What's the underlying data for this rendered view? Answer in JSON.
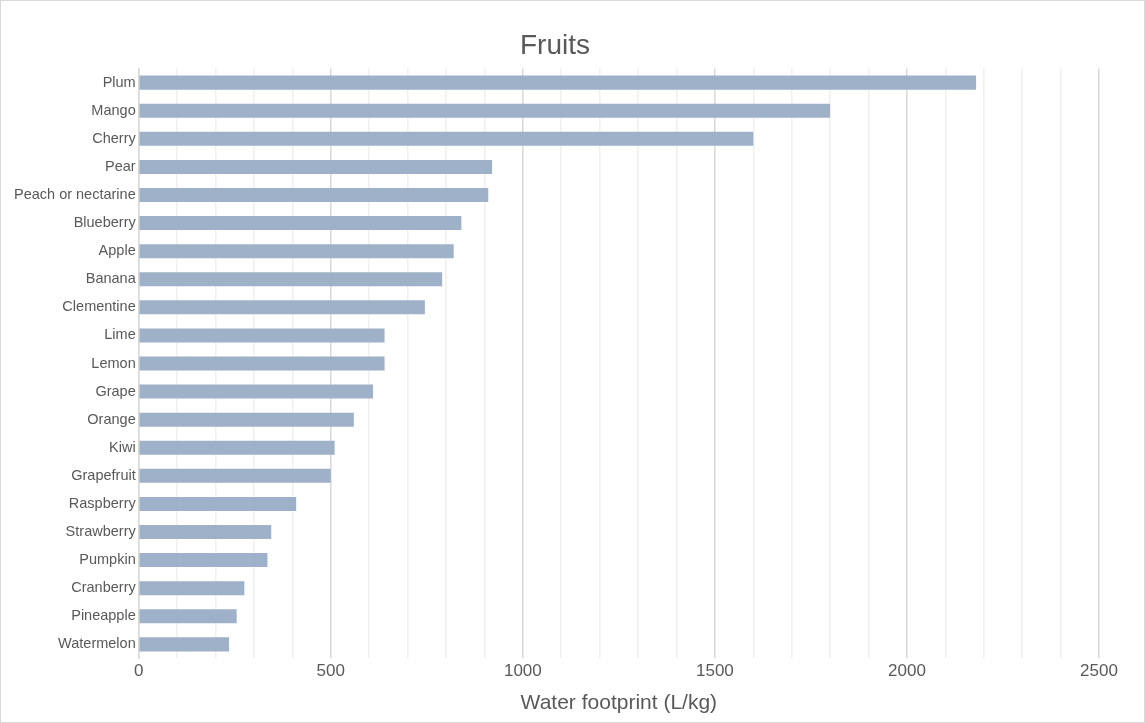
{
  "chart_data": {
    "type": "bar",
    "orientation": "horizontal",
    "title": "Fruits",
    "xlabel": "Water footprint (L/kg)",
    "categories": [
      "Plum",
      "Mango",
      "Cherry",
      "Pear",
      "Peach or nectarine",
      "Blueberry",
      "Apple",
      "Banana",
      "Clementine",
      "Lime",
      "Lemon",
      "Grape",
      "Orange",
      "Kiwi",
      "Grapefruit",
      "Raspberry",
      "Strawberry",
      "Pumpkin",
      "Cranberry",
      "Pineapple",
      "Watermelon"
    ],
    "values": [
      2180,
      1800,
      1600,
      920,
      910,
      840,
      820,
      790,
      745,
      640,
      640,
      610,
      560,
      510,
      500,
      410,
      345,
      335,
      275,
      255,
      235
    ],
    "color": "#9eb1c8",
    "xlim": [
      0,
      2500
    ],
    "xticks": [
      0,
      {
        "value": 100,
        "label": null
      },
      {
        "value": 200,
        "label": null
      },
      {
        "value": 300,
        "label": null
      },
      {
        "value": 400,
        "label": null
      },
      500,
      {
        "value": 600,
        "label": null
      },
      {
        "value": 700,
        "label": null
      },
      {
        "value": 800,
        "label": null
      },
      {
        "value": 900,
        "label": null
      },
      1000,
      {
        "value": 1100,
        "label": null
      },
      {
        "value": 1200,
        "label": null
      },
      {
        "value": 1300,
        "label": null
      },
      {
        "value": 1400,
        "label": null
      },
      1500,
      {
        "value": 1600,
        "label": null
      },
      {
        "value": 1700,
        "label": null
      },
      {
        "value": 1800,
        "label": null
      },
      {
        "value": 1900,
        "label": null
      },
      2000,
      {
        "value": 2100,
        "label": null
      },
      {
        "value": 2200,
        "label": null
      },
      {
        "value": 2300,
        "label": null
      },
      {
        "value": 2400,
        "label": null
      },
      2500
    ],
    "grid": "x",
    "legend": false
  }
}
